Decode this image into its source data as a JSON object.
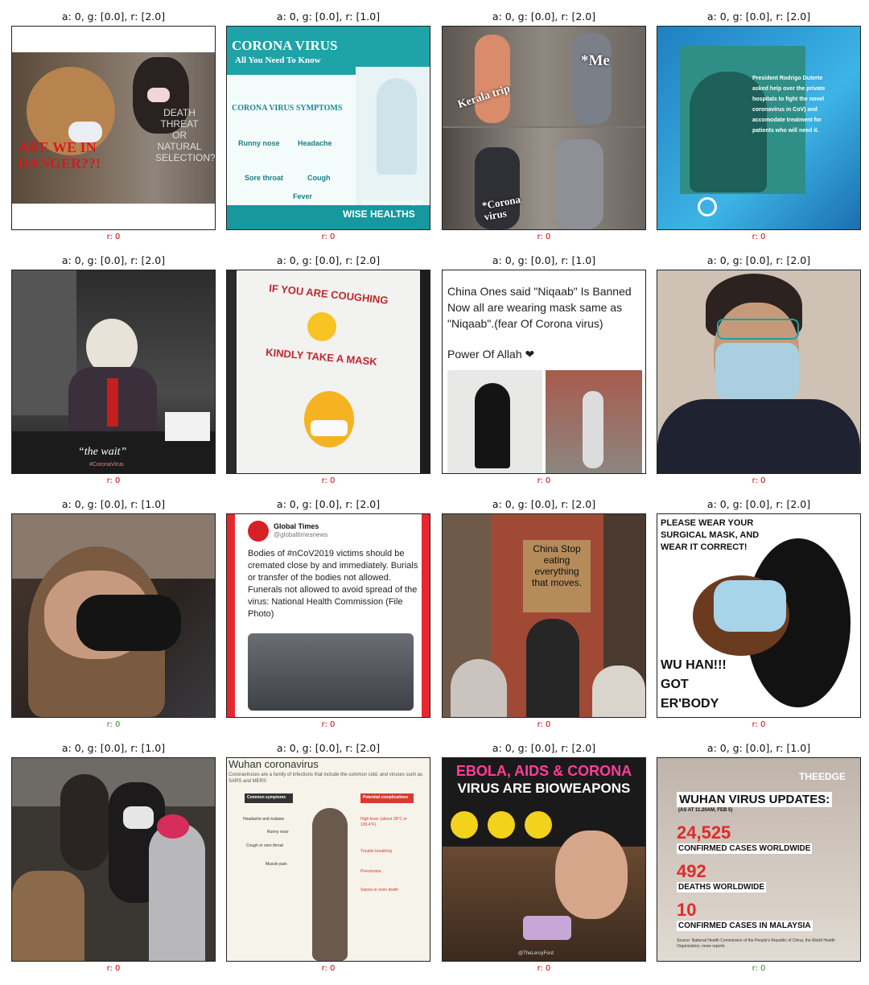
{
  "cells": [
    {
      "title": "a: 0, g: [0.0], r: [2.0]",
      "caption": "r: 0",
      "caption_color": "#cc0000",
      "texts": [
        "ARE WE IN DANGER??!",
        "DEATH THREAT OR NATURAL SELECTION?!!"
      ]
    },
    {
      "title": "a: 0, g: [0.0], r: [1.0]",
      "caption": "r: 0",
      "caption_color": "#cc0000",
      "texts": [
        "CORONA VIRUS",
        "All You Need To Know",
        "CORONA VIRUS SYMPTOMS",
        "Runny nose",
        "Headache",
        "Sore throat",
        "Cough",
        "Fever",
        "#rakhsapnokakhayal",
        "WISE HEALTHS"
      ]
    },
    {
      "title": "a: 0, g: [0.0], r: [2.0]",
      "caption": "r: 0",
      "caption_color": "#cc0000",
      "texts": [
        "Kerala trip",
        "*Me",
        "*Corona virus"
      ]
    },
    {
      "title": "a: 0, g: [0.0], r: [2.0]",
      "caption": "r: 0",
      "caption_color": "#cc0000",
      "texts": [
        "President Rodrigo Duterte asked help over the private hospitals to fight the novel coronavirus in CoV) and accomodate treatment for patients who will need it."
      ]
    },
    {
      "title": "a: 0, g: [0.0], r: [2.0]",
      "caption": "r: 0",
      "caption_color": "#cc0000",
      "texts": [
        "“the wait”",
        "#CoronaVirus"
      ]
    },
    {
      "title": "a: 0, g: [0.0], r: [2.0]",
      "caption": "r: 0",
      "caption_color": "#cc0000",
      "texts": [
        "IF YOU ARE COUGHING",
        "KINDLY TAKE A MASK"
      ]
    },
    {
      "title": "a: 0, g: [0.0], r: [1.0]",
      "caption": "r: 0",
      "caption_color": "#cc0000",
      "texts": [
        "China Ones said \"Niqaab\" Is Banned Now all are wearing mask same as \"Niqaab\".(fear Of Corona virus)",
        "Power Of Allah ❤"
      ]
    },
    {
      "title": "a: 0, g: [0.0], r: [2.0]",
      "caption": "r: 0",
      "caption_color": "#cc0000",
      "texts": []
    },
    {
      "title": "a: 0, g: [0.0], r: [1.0]",
      "caption": "r: 0",
      "caption_color": "#2a8a2a",
      "texts": []
    },
    {
      "title": "a: 0, g: [0.0], r: [2.0]",
      "caption": "r: 0",
      "caption_color": "#cc0000",
      "texts": [
        "Global Times",
        "@globaltimesnews",
        "Bodies of #nCoV2019 victims should be cremated close by and immediately. Burials or transfer of the bodies not allowed. Funerals not allowed to avoid spread of the virus: National Health Commission (File Photo)"
      ]
    },
    {
      "title": "a: 0, g: [0.0], r: [2.0]",
      "caption": "r: 0",
      "caption_color": "#cc0000",
      "texts": [
        "China Stop eating everything that moves."
      ]
    },
    {
      "title": "a: 0, g: [0.0], r: [2.0]",
      "caption": "r: 0",
      "caption_color": "#cc0000",
      "texts": [
        "PLEASE WEAR YOUR SURGICAL MASK, AND WEAR IT CORRECT!",
        "WU HAN!!! GOT ER'BODY SICK!!!"
      ]
    },
    {
      "title": "a: 0, g: [0.0], r: [1.0]",
      "caption": "r: 0",
      "caption_color": "#cc0000",
      "texts": []
    },
    {
      "title": "a: 0, g: [0.0], r: [2.0]",
      "caption": "r: 0",
      "caption_color": "#cc0000",
      "texts": [
        "Wuhan coronavirus",
        "Coronaviruses are a family of infections that include the common cold, and viruses such as SARS and MERS",
        "Common symptoms",
        "Potential complications",
        "Headache and malaise",
        "Runny nose",
        "Cough or sore throat",
        "Muscle pain",
        "High fever (above 38°C or 100.4°F)",
        "Trouble breathing",
        "Pneumonia",
        "Sepsis or even death"
      ]
    },
    {
      "title": "a: 0, g: [0.0], r: [2.0]",
      "caption": "r: 0",
      "caption_color": "#cc0000",
      "texts": [
        "EBOLA, AIDS & CORONA",
        "VIRUS ARE BIOWEAPONS",
        "@TheLeroyFord"
      ]
    },
    {
      "title": "a: 0, g: [0.0], r: [1.0]",
      "caption": "r: 0",
      "caption_color": "#2a8a2a",
      "texts": [
        "THEEDGE",
        "WUHAN VIRUS UPDATES:",
        "(AS AT 11.20AM, FEB 5)",
        "24,525",
        "CONFIRMED CASES WORLDWIDE",
        "492",
        "DEATHS WORLDWIDE",
        "10",
        "CONFIRMED CASES IN MALAYSIA",
        "Source: National Health Commission of the People's Republic of China, the World Health Organization, news reports"
      ]
    }
  ]
}
